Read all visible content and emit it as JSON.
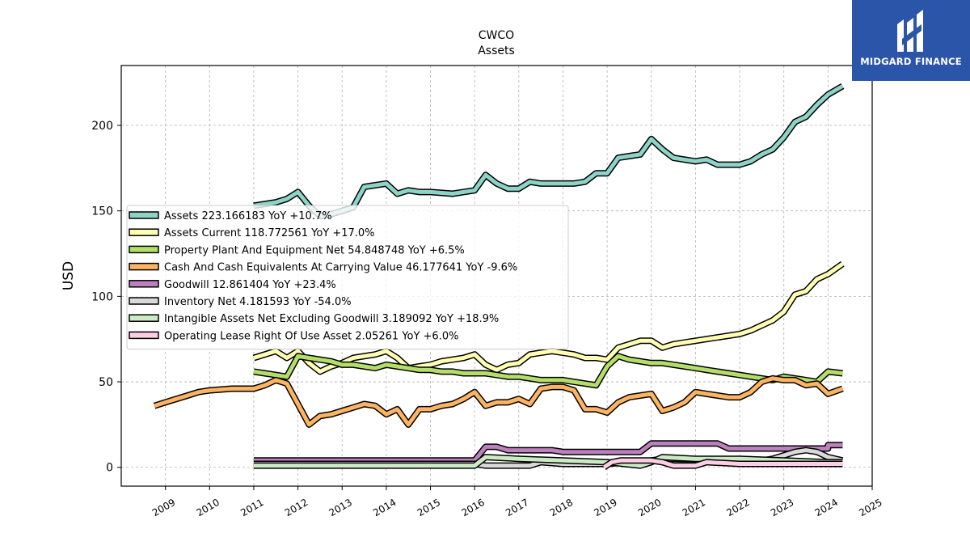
{
  "chart_data": {
    "type": "line",
    "title": "CWCO",
    "subtitle": "Assets",
    "ylabel": "USD",
    "xlabel": "",
    "ylim": [
      -11,
      235
    ],
    "xlim": [
      2008.0,
      2025.0
    ],
    "yticks": [
      0,
      50,
      100,
      150,
      200
    ],
    "xticks": [
      "2009",
      "2010",
      "2011",
      "2012",
      "2013",
      "2014",
      "2015",
      "2016",
      "2017",
      "2018",
      "2019",
      "2020",
      "2021",
      "2022",
      "2023",
      "2024",
      "2025"
    ],
    "grid": true,
    "legend_position": "center-left",
    "series": [
      {
        "name": "Assets  223.166183 YoY +10.7%",
        "color": "#8dd3c7",
        "points": [
          [
            2011.0,
            153
          ],
          [
            2011.5,
            155
          ],
          [
            2011.75,
            157
          ],
          [
            2012.0,
            161
          ],
          [
            2012.25,
            153
          ],
          [
            2012.5,
            147
          ],
          [
            2012.75,
            148
          ],
          [
            2013.0,
            150
          ],
          [
            2013.25,
            152
          ],
          [
            2013.5,
            164
          ],
          [
            2013.75,
            165
          ],
          [
            2014.0,
            166
          ],
          [
            2014.25,
            160
          ],
          [
            2014.5,
            162
          ],
          [
            2014.75,
            161
          ],
          [
            2015.0,
            161
          ],
          [
            2015.5,
            160
          ],
          [
            2015.75,
            161
          ],
          [
            2016.0,
            162
          ],
          [
            2016.25,
            171
          ],
          [
            2016.5,
            166
          ],
          [
            2016.75,
            163
          ],
          [
            2017.0,
            163
          ],
          [
            2017.25,
            167
          ],
          [
            2017.5,
            166
          ],
          [
            2017.75,
            166
          ],
          [
            2018.0,
            166
          ],
          [
            2018.25,
            166
          ],
          [
            2018.5,
            167
          ],
          [
            2018.75,
            172
          ],
          [
            2019.0,
            172
          ],
          [
            2019.25,
            181
          ],
          [
            2019.5,
            182
          ],
          [
            2019.75,
            183
          ],
          [
            2020.0,
            192
          ],
          [
            2020.25,
            186
          ],
          [
            2020.5,
            181
          ],
          [
            2020.75,
            180
          ],
          [
            2021.0,
            179
          ],
          [
            2021.25,
            180
          ],
          [
            2021.5,
            177
          ],
          [
            2021.75,
            177
          ],
          [
            2022.0,
            177
          ],
          [
            2022.25,
            179
          ],
          [
            2022.5,
            183
          ],
          [
            2022.75,
            186
          ],
          [
            2023.0,
            193
          ],
          [
            2023.25,
            202
          ],
          [
            2023.5,
            205
          ],
          [
            2023.75,
            212
          ],
          [
            2024.0,
            218
          ],
          [
            2024.33,
            223
          ]
        ]
      },
      {
        "name": "Assets Current  118.772561 YoY +17.0%",
        "color": "#ffffb3",
        "points": [
          [
            2011.0,
            64
          ],
          [
            2011.25,
            66
          ],
          [
            2011.5,
            68
          ],
          [
            2011.75,
            64
          ],
          [
            2012.0,
            68
          ],
          [
            2012.25,
            61
          ],
          [
            2012.5,
            56
          ],
          [
            2012.75,
            59
          ],
          [
            2013.0,
            61
          ],
          [
            2013.25,
            64
          ],
          [
            2013.5,
            65
          ],
          [
            2013.75,
            66
          ],
          [
            2014.0,
            68
          ],
          [
            2014.25,
            64
          ],
          [
            2014.5,
            58
          ],
          [
            2014.75,
            59
          ],
          [
            2015.0,
            60
          ],
          [
            2015.25,
            62
          ],
          [
            2015.5,
            63
          ],
          [
            2015.75,
            64
          ],
          [
            2016.0,
            66
          ],
          [
            2016.25,
            60
          ],
          [
            2016.5,
            57
          ],
          [
            2016.75,
            60
          ],
          [
            2017.0,
            61
          ],
          [
            2017.25,
            66
          ],
          [
            2017.5,
            67
          ],
          [
            2017.75,
            68
          ],
          [
            2018.0,
            67
          ],
          [
            2018.25,
            66
          ],
          [
            2018.5,
            64
          ],
          [
            2018.75,
            64
          ],
          [
            2019.0,
            63
          ],
          [
            2019.25,
            70
          ],
          [
            2019.5,
            72
          ],
          [
            2019.75,
            74
          ],
          [
            2020.0,
            74
          ],
          [
            2020.25,
            70
          ],
          [
            2020.5,
            72
          ],
          [
            2020.75,
            73
          ],
          [
            2021.0,
            74
          ],
          [
            2021.25,
            75
          ],
          [
            2021.5,
            76
          ],
          [
            2021.75,
            77
          ],
          [
            2022.0,
            78
          ],
          [
            2022.25,
            80
          ],
          [
            2022.5,
            83
          ],
          [
            2022.75,
            86
          ],
          [
            2023.0,
            91
          ],
          [
            2023.25,
            101
          ],
          [
            2023.5,
            103
          ],
          [
            2023.75,
            110
          ],
          [
            2024.0,
            113
          ],
          [
            2024.33,
            119
          ]
        ]
      },
      {
        "name": "Property Plant And Equipment Net  54.848748 YoY +6.5%",
        "color": "#b3de69",
        "points": [
          [
            2011.0,
            56
          ],
          [
            2011.25,
            55
          ],
          [
            2011.5,
            54
          ],
          [
            2011.75,
            53
          ],
          [
            2012.0,
            65
          ],
          [
            2012.25,
            64
          ],
          [
            2012.5,
            63
          ],
          [
            2012.75,
            62
          ],
          [
            2013.0,
            60
          ],
          [
            2013.25,
            60
          ],
          [
            2013.5,
            59
          ],
          [
            2013.75,
            58
          ],
          [
            2014.0,
            60
          ],
          [
            2014.25,
            59
          ],
          [
            2014.5,
            58
          ],
          [
            2014.75,
            57
          ],
          [
            2015.0,
            57
          ],
          [
            2015.25,
            56
          ],
          [
            2015.5,
            56
          ],
          [
            2015.75,
            55
          ],
          [
            2016.0,
            55
          ],
          [
            2016.25,
            55
          ],
          [
            2016.5,
            54
          ],
          [
            2016.75,
            53
          ],
          [
            2017.0,
            53
          ],
          [
            2017.25,
            52
          ],
          [
            2017.5,
            51
          ],
          [
            2017.75,
            51
          ],
          [
            2018.0,
            51
          ],
          [
            2018.25,
            50
          ],
          [
            2018.5,
            49
          ],
          [
            2018.75,
            48
          ],
          [
            2019.0,
            59
          ],
          [
            2019.25,
            65
          ],
          [
            2019.5,
            63
          ],
          [
            2019.75,
            62
          ],
          [
            2020.0,
            61
          ],
          [
            2020.25,
            61
          ],
          [
            2020.5,
            60
          ],
          [
            2020.75,
            59
          ],
          [
            2021.0,
            58
          ],
          [
            2021.25,
            57
          ],
          [
            2021.5,
            56
          ],
          [
            2021.75,
            55
          ],
          [
            2022.0,
            54
          ],
          [
            2022.25,
            53
          ],
          [
            2022.5,
            52
          ],
          [
            2022.75,
            51
          ],
          [
            2023.0,
            53
          ],
          [
            2023.25,
            52
          ],
          [
            2023.5,
            51
          ],
          [
            2023.75,
            50
          ],
          [
            2024.0,
            56
          ],
          [
            2024.33,
            55
          ]
        ]
      },
      {
        "name": "Cash And Cash Equivalents At Carrying Value  46.177641 YoY -9.6%",
        "color": "#fdb462",
        "points": [
          [
            2008.75,
            36
          ],
          [
            2009.0,
            38
          ],
          [
            2009.25,
            40
          ],
          [
            2009.5,
            42
          ],
          [
            2009.75,
            44
          ],
          [
            2010.0,
            45
          ],
          [
            2010.5,
            46
          ],
          [
            2011.0,
            46
          ],
          [
            2011.25,
            48
          ],
          [
            2011.5,
            51
          ],
          [
            2011.75,
            49
          ],
          [
            2012.0,
            37
          ],
          [
            2012.25,
            25
          ],
          [
            2012.5,
            30
          ],
          [
            2012.75,
            31
          ],
          [
            2013.0,
            33
          ],
          [
            2013.25,
            35
          ],
          [
            2013.5,
            37
          ],
          [
            2013.75,
            36
          ],
          [
            2014.0,
            31
          ],
          [
            2014.25,
            34
          ],
          [
            2014.5,
            25
          ],
          [
            2014.75,
            34
          ],
          [
            2015.0,
            34
          ],
          [
            2015.25,
            36
          ],
          [
            2015.5,
            37
          ],
          [
            2015.75,
            40
          ],
          [
            2016.0,
            44
          ],
          [
            2016.25,
            36
          ],
          [
            2016.5,
            38
          ],
          [
            2016.75,
            38
          ],
          [
            2017.0,
            40
          ],
          [
            2017.25,
            37
          ],
          [
            2017.5,
            46
          ],
          [
            2017.75,
            47
          ],
          [
            2018.0,
            47
          ],
          [
            2018.25,
            45
          ],
          [
            2018.5,
            34
          ],
          [
            2018.75,
            34
          ],
          [
            2019.0,
            32
          ],
          [
            2019.25,
            38
          ],
          [
            2019.5,
            41
          ],
          [
            2019.75,
            42
          ],
          [
            2020.0,
            43
          ],
          [
            2020.25,
            33
          ],
          [
            2020.5,
            35
          ],
          [
            2020.75,
            38
          ],
          [
            2021.0,
            44
          ],
          [
            2021.25,
            43
          ],
          [
            2021.5,
            42
          ],
          [
            2021.75,
            41
          ],
          [
            2022.0,
            41
          ],
          [
            2022.25,
            44
          ],
          [
            2022.5,
            50
          ],
          [
            2022.75,
            52
          ],
          [
            2023.0,
            51
          ],
          [
            2023.25,
            51
          ],
          [
            2023.5,
            48
          ],
          [
            2023.75,
            49
          ],
          [
            2024.0,
            43
          ],
          [
            2024.33,
            46
          ]
        ]
      },
      {
        "name": "Goodwill  12.861404 YoY +23.4%",
        "color": "#bc80bd",
        "points": [
          [
            2011.0,
            4
          ],
          [
            2016.0,
            4
          ],
          [
            2016.25,
            12
          ],
          [
            2016.5,
            12
          ],
          [
            2016.75,
            10
          ],
          [
            2017.75,
            10
          ],
          [
            2018.0,
            9
          ],
          [
            2019.75,
            9
          ],
          [
            2020.0,
            14
          ],
          [
            2021.5,
            14
          ],
          [
            2021.75,
            11
          ],
          [
            2024.0,
            11
          ],
          [
            2024.0,
            13
          ],
          [
            2024.33,
            13
          ]
        ]
      },
      {
        "name": "Inventory Net  4.181593 YoY -54.0%",
        "color": "#d9d9d9",
        "points": [
          [
            2011.0,
            2
          ],
          [
            2016.0,
            2
          ],
          [
            2016.25,
            1
          ],
          [
            2016.75,
            1
          ],
          [
            2017.25,
            1
          ],
          [
            2017.5,
            3
          ],
          [
            2018.0,
            2
          ],
          [
            2019.0,
            2
          ],
          [
            2019.5,
            3
          ],
          [
            2019.75,
            3
          ],
          [
            2020.25,
            5
          ],
          [
            2020.5,
            5
          ],
          [
            2022.0,
            4
          ],
          [
            2022.5,
            4
          ],
          [
            2022.75,
            5
          ],
          [
            2023.0,
            7
          ],
          [
            2023.25,
            9
          ],
          [
            2023.5,
            10
          ],
          [
            2023.75,
            9
          ],
          [
            2024.0,
            6
          ],
          [
            2024.33,
            4
          ]
        ]
      },
      {
        "name": "Intangible Assets Net Excluding Goodwill  3.189092 YoY +18.9%",
        "color": "#ccebc5",
        "points": [
          [
            2011.0,
            1
          ],
          [
            2012.0,
            1
          ],
          [
            2014.0,
            1
          ],
          [
            2016.0,
            1
          ],
          [
            2016.25,
            6
          ],
          [
            2017.0,
            5
          ],
          [
            2018.0,
            4
          ],
          [
            2019.0,
            3
          ],
          [
            2019.75,
            1
          ],
          [
            2020.0,
            3
          ],
          [
            2020.25,
            6
          ],
          [
            2021.0,
            5
          ],
          [
            2022.0,
            5
          ],
          [
            2023.0,
            4
          ],
          [
            2024.0,
            3
          ],
          [
            2024.33,
            3
          ]
        ]
      },
      {
        "name": "Operating Lease Right Of Use Asset  2.05261 YoY +6.0%",
        "color": "#fccde5",
        "points": [
          [
            2018.93,
            0
          ],
          [
            2019.1,
            3
          ],
          [
            2019.3,
            4
          ],
          [
            2020.0,
            4
          ],
          [
            2020.25,
            3
          ],
          [
            2020.5,
            1
          ],
          [
            2021.0,
            1
          ],
          [
            2021.25,
            3
          ],
          [
            2022.0,
            2
          ],
          [
            2023.0,
            2
          ],
          [
            2023.75,
            2
          ],
          [
            2024.0,
            2
          ],
          [
            2024.33,
            2
          ]
        ]
      }
    ]
  },
  "logo": {
    "text": "MIDGARD FINANCE",
    "color": "#2b55a8"
  }
}
